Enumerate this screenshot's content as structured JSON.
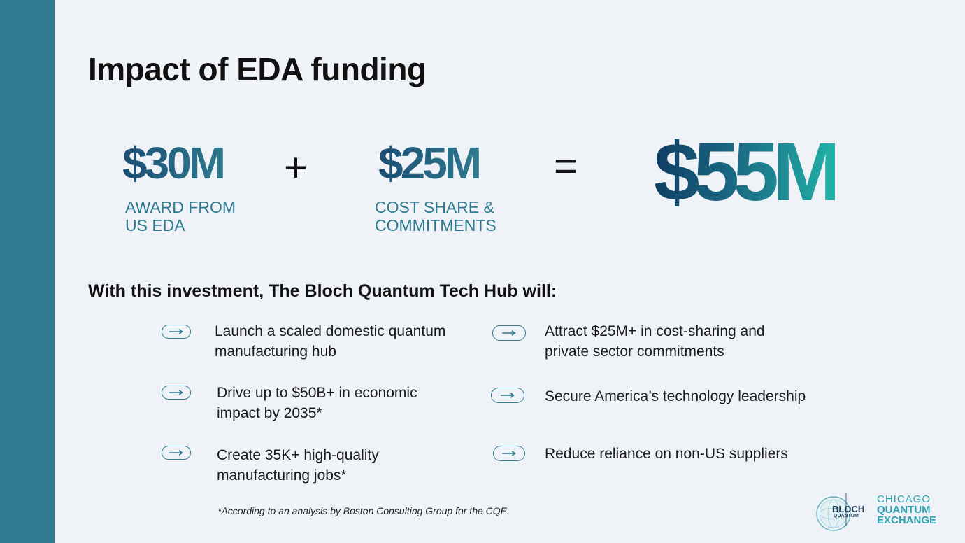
{
  "slide": {
    "title": "Impact of EDA funding",
    "equation": {
      "term1": {
        "value": "$30M",
        "caption_line1": "AWARD FROM",
        "caption_line2": "US EDA"
      },
      "operator_plus": "+",
      "term2": {
        "value": "$25M",
        "caption_line1": "COST SHARE &",
        "caption_line2": "COMMITMENTS"
      },
      "operator_equals": "=",
      "total": "$55M"
    },
    "subheading": "With this investment, The Bloch Quantum Tech Hub will:",
    "items_left": [
      "Launch a scaled domestic quantum\nmanufacturing hub",
      "Drive up to $50B+ in economic\nimpact by 2035*",
      "Create 35K+ high-quality\nmanufacturing jobs*"
    ],
    "items_right": [
      "Attract $25M+ in cost-sharing and\nprivate sector commitments",
      "Secure America’s technology leadership",
      "Reduce reliance on non-US suppliers"
    ],
    "footnote": "*According to an analysis by Boston Consulting Group for the CQE.",
    "logos": {
      "bloch_word": "BLOCH",
      "bloch_sub": "QUANTUM",
      "cqe_line1": "CHICAGO",
      "cqe_line2": "QUANTUM",
      "cqe_line3": "EXCHANGE"
    },
    "icons": {
      "bullet": "arrow-right-pill-icon"
    },
    "colors": {
      "sidebar": "#2e7a8f",
      "accent_teal": "#2e7a8f",
      "navy": "#1d4f73",
      "cqe_teal": "#2fa3b4"
    }
  }
}
